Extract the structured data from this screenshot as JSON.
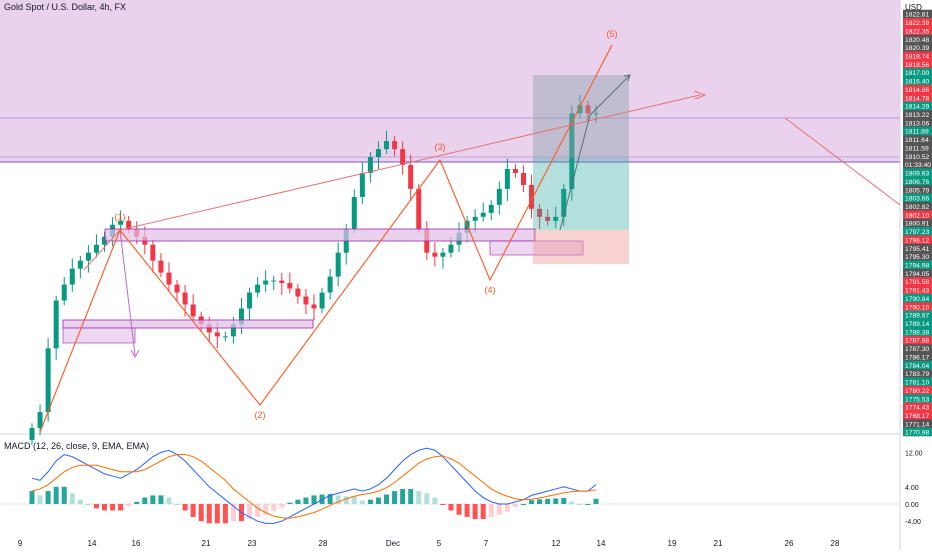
{
  "header": {
    "title": "Gold Spot / U.S. Dollar, 4h, FX",
    "currency": "USD"
  },
  "macd": {
    "title": "MACD (12, 26, close, 9, EMA, EMA)",
    "ticks": [
      "12.00",
      "4.00",
      "0.00",
      "-4.00"
    ],
    "tick_values": [
      12,
      4,
      0,
      -4
    ],
    "macd_line": [
      6,
      5.5,
      7.5,
      10,
      11.5,
      11,
      10,
      9,
      8,
      7,
      6.5,
      6,
      7,
      8,
      9.5,
      11,
      12,
      12.5,
      11.5,
      10,
      8,
      6,
      4,
      2.5,
      1,
      -0.5,
      -2,
      -3,
      -4,
      -4.5,
      -4.5,
      -4,
      -3,
      -2,
      -1,
      0,
      1,
      2,
      2.5,
      3,
      3.5,
      3,
      3.5,
      4.5,
      6,
      8,
      10,
      11.5,
      12.5,
      13,
      12.5,
      11,
      9,
      7,
      5,
      3,
      1.5,
      0.5,
      0,
      0,
      0.5,
      1,
      2,
      2.5,
      3,
      3.5,
      4,
      3.5,
      3,
      3,
      4.5
    ],
    "signal_line": [
      3,
      3.5,
      4.5,
      6,
      7.5,
      8.5,
      9,
      9,
      9,
      8.5,
      8,
      7.5,
      7.5,
      7.5,
      8,
      9,
      10,
      11,
      11.5,
      11.5,
      11,
      10,
      8.5,
      7,
      5.5,
      3.5,
      2,
      0.5,
      -1,
      -2,
      -2.8,
      -3.2,
      -3.3,
      -3,
      -2.5,
      -2,
      -1.2,
      -0.3,
      0.5,
      1.2,
      1.8,
      2.2,
      2.5,
      3,
      3.8,
      5,
      6.5,
      8,
      9.5,
      10.5,
      11,
      11.2,
      10.5,
      9.5,
      8,
      6.5,
      5,
      3.5,
      2.5,
      1.8,
      1.2,
      1,
      1.1,
      1.4,
      1.8,
      2.2,
      2.6,
      2.9,
      3,
      3,
      3.3
    ],
    "histogram": [
      3,
      2,
      3,
      4,
      4,
      2.5,
      1,
      0,
      -1,
      -1.5,
      -1.5,
      -1.5,
      -0.5,
      0.5,
      1.5,
      2,
      2,
      1.5,
      0,
      -1.5,
      -3,
      -4,
      -4.5,
      -4.5,
      -4.5,
      -4,
      -4,
      -3.5,
      -3,
      -2.5,
      -1.7,
      -0.8,
      0.3,
      1,
      1.5,
      2,
      2.2,
      2.3,
      2,
      1.8,
      1.7,
      0.8,
      1,
      1.5,
      2.2,
      3,
      3.5,
      3.5,
      3,
      2.5,
      1.5,
      -0.2,
      -1.5,
      -2.5,
      -3,
      -3.5,
      -3.5,
      -3,
      -2.5,
      -1.8,
      -0.7,
      0,
      0.9,
      1.1,
      1.2,
      1.3,
      1.4,
      0.6,
      0,
      0,
      1.2
    ]
  },
  "price_axis": {
    "labels": [
      {
        "value": "1822.81",
        "color": "#555555"
      },
      {
        "value": "1822.39",
        "color": "#f23645"
      },
      {
        "value": "1822.35",
        "color": "#f23645"
      },
      {
        "value": "1820.48",
        "color": "#555555"
      },
      {
        "value": "1820.39",
        "color": "#555555"
      },
      {
        "value": "1818.74",
        "color": "#f23645"
      },
      {
        "value": "1818.56",
        "color": "#f23645"
      },
      {
        "value": "1817.00",
        "color": "#089981"
      },
      {
        "value": "1816.40",
        "color": "#089981"
      },
      {
        "value": "1814.86",
        "color": "#f23645"
      },
      {
        "value": "1814.78",
        "color": "#f23645"
      },
      {
        "value": "1814.29",
        "color": "#089981"
      },
      {
        "value": "1813.22",
        "color": "#555555"
      },
      {
        "value": "1813.06",
        "color": "#555555"
      },
      {
        "value": "1811.69",
        "color": "#089981"
      },
      {
        "value": "1811.64",
        "color": "#555555"
      },
      {
        "value": "1811.59",
        "color": "#555555"
      },
      {
        "value": "1810.52",
        "color": "#555555"
      },
      {
        "value": "01:33:40",
        "color": "#555555"
      },
      {
        "value": "1809.63",
        "color": "#089981"
      },
      {
        "value": "1806.76",
        "color": "#089981"
      },
      {
        "value": "1805.79",
        "color": "#555555"
      },
      {
        "value": "1803.66",
        "color": "#089981"
      },
      {
        "value": "1802.82",
        "color": "#555555"
      },
      {
        "value": "1802.10",
        "color": "#f23645"
      },
      {
        "value": "1800.91",
        "color": "#555555"
      },
      {
        "value": "1797.23",
        "color": "#089981"
      },
      {
        "value": "1796.12",
        "color": "#f23645"
      },
      {
        "value": "1795.41",
        "color": "#555555"
      },
      {
        "value": "1795.30",
        "color": "#555555"
      },
      {
        "value": "1794.98",
        "color": "#089981"
      },
      {
        "value": "1794.05",
        "color": "#555555"
      },
      {
        "value": "1791.58",
        "color": "#f23645"
      },
      {
        "value": "1791.43",
        "color": "#f23645"
      },
      {
        "value": "1790.84",
        "color": "#089981"
      },
      {
        "value": "1790.10",
        "color": "#f23645"
      },
      {
        "value": "1789.87",
        "color": "#089981"
      },
      {
        "value": "1789.14",
        "color": "#089981"
      },
      {
        "value": "1788.38",
        "color": "#089981"
      },
      {
        "value": "1787.88",
        "color": "#f23645"
      },
      {
        "value": "1787.30",
        "color": "#555555"
      },
      {
        "value": "1786.17",
        "color": "#555555"
      },
      {
        "value": "1784.04",
        "color": "#089981"
      },
      {
        "value": "1783.79",
        "color": "#555555"
      },
      {
        "value": "1781.10",
        "color": "#089981"
      },
      {
        "value": "1780.22",
        "color": "#f23645"
      },
      {
        "value": "1775.53",
        "color": "#089981"
      },
      {
        "value": "1774.43",
        "color": "#f23645"
      },
      {
        "value": "1768.17",
        "color": "#f23645"
      },
      {
        "value": "1771.14",
        "color": "#555555"
      },
      {
        "value": "1770.98",
        "color": "#089981"
      }
    ]
  },
  "x_axis": {
    "labels": [
      "9",
      "14",
      "16",
      "21",
      "23",
      "28",
      "Dec",
      "5",
      "7",
      "12",
      "14",
      "19",
      "21",
      "26",
      "28"
    ]
  },
  "wave_labels": [
    "(1)",
    "(2)",
    "(3)",
    "(4)",
    "(5)"
  ],
  "colors": {
    "up": "#089981",
    "down": "#f23645",
    "zone": "#e1bee7",
    "zone_border": "#9c27b0",
    "trend": "#e57373",
    "wave": "#ff5722"
  },
  "chart_data": {
    "type": "candlestick",
    "title": "Gold Spot / U.S. Dollar, 4h, FX",
    "x_tick_labels": [
      "9",
      "14",
      "16",
      "21",
      "23",
      "28",
      "Dec",
      "5",
      "7",
      "12",
      "14",
      "19",
      "21",
      "26",
      "28"
    ],
    "y_axis_currency": "USD",
    "wave_labels": [
      "(1)",
      "(2)",
      "(3)",
      "(4)",
      "(5)"
    ],
    "close_series": [
      1771,
      1773,
      1781,
      1787,
      1789,
      1791,
      1792,
      1793,
      1794,
      1795,
      1796.5,
      1797,
      1796,
      1795,
      1794,
      1792,
      1790.5,
      1789,
      1788,
      1786.5,
      1785,
      1784,
      1783,
      1782.5,
      1782.5,
      1784,
      1786,
      1788,
      1789,
      1789.5,
      1789.5,
      1789.2,
      1788.5,
      1787.5,
      1786.5,
      1786,
      1788,
      1790,
      1793,
      1796,
      1800,
      1803,
      1805,
      1806,
      1807,
      1806,
      1804,
      1801,
      1796,
      1793,
      1792.5,
      1793,
      1794,
      1795.5,
      1797,
      1797.5,
      1798,
      1799,
      1801,
      1803.5,
      1803,
      1801.5,
      1798.5,
      1797.5,
      1797,
      1797.5,
      1801,
      1810.5,
      1811.5,
      1810.5,
      1810.5
    ],
    "macd": {
      "macd_line": [
        6,
        5.5,
        7.5,
        10,
        11.5,
        11,
        10,
        9,
        8,
        7,
        6.5,
        6,
        7,
        8,
        9.5,
        11,
        12,
        12.5,
        11.5,
        10,
        8,
        6,
        4,
        2.5,
        1,
        -0.5,
        -2,
        -3,
        -4,
        -4.5,
        -4.5,
        -4,
        -3,
        -2,
        -1,
        0,
        1,
        2,
        2.5,
        3,
        3.5,
        3,
        3.5,
        4.5,
        6,
        8,
        10,
        11.5,
        12.5,
        13,
        12.5,
        11,
        9,
        7,
        5,
        3,
        1.5,
        0.5,
        0,
        0,
        0.5,
        1,
        2,
        2.5,
        3,
        3.5,
        4,
        3.5,
        3,
        3,
        4.5
      ],
      "signal_line": [
        3,
        3.5,
        4.5,
        6,
        7.5,
        8.5,
        9,
        9,
        9,
        8.5,
        8,
        7.5,
        7.5,
        7.5,
        8,
        9,
        10,
        11,
        11.5,
        11.5,
        11,
        10,
        8.5,
        7,
        5.5,
        3.5,
        2,
        0.5,
        -1,
        -2,
        -2.8,
        -3.2,
        -3.3,
        -3,
        -2.5,
        -2,
        -1.2,
        -0.3,
        0.5,
        1.2,
        1.8,
        2.2,
        2.5,
        3,
        3.8,
        5,
        6.5,
        8,
        9.5,
        10.5,
        11,
        11.2,
        10.5,
        9.5,
        8,
        6.5,
        5,
        3.5,
        2.5,
        1.8,
        1.2,
        1,
        1.1,
        1.4,
        1.8,
        2.2,
        2.6,
        2.9,
        3,
        3,
        3.3
      ],
      "histogram": [
        3,
        2,
        3,
        4,
        4,
        2.5,
        1,
        0,
        -1,
        -1.5,
        -1.5,
        -1.5,
        -0.5,
        0.5,
        1.5,
        2,
        2,
        1.5,
        0,
        -1.5,
        -3,
        -4,
        -4.5,
        -4.5,
        -4.5,
        -4,
        -4,
        -3.5,
        -3,
        -2.5,
        -1.7,
        -0.8,
        0.3,
        1,
        1.5,
        2,
        2.2,
        2.3,
        2,
        1.8,
        1.7,
        0.8,
        1,
        1.5,
        2.2,
        3,
        3.5,
        3.5,
        3,
        2.5,
        1.5,
        -0.2,
        -1.5,
        -2.5,
        -3,
        -3.5,
        -3.5,
        -3,
        -2.5,
        -1.8,
        -0.7,
        0,
        0.9,
        1.1,
        1.2,
        1.3,
        1.4,
        0.6,
        0,
        0,
        1.2
      ]
    }
  }
}
